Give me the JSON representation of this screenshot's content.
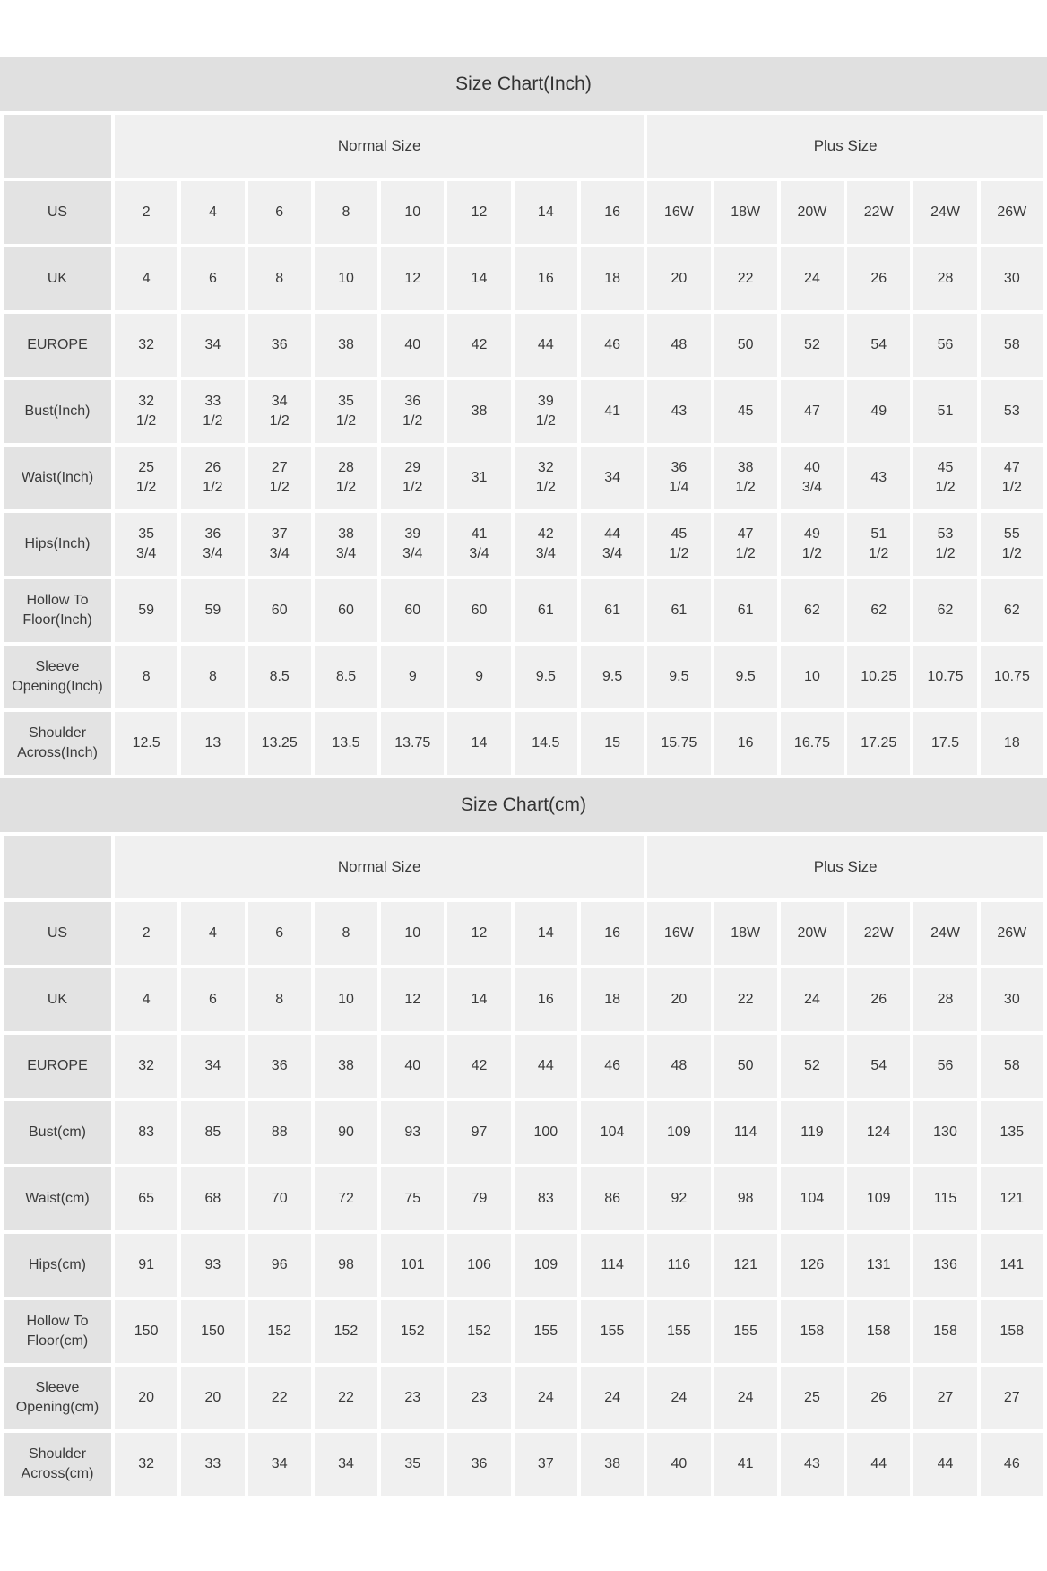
{
  "colors": {
    "title-bg": "#e0e0e0",
    "label-bg": "#e3e3e3",
    "cell-bg": "#f0f0f0",
    "text": "#3a3a3a"
  },
  "chart_data": [
    {
      "type": "table",
      "title": "Size Chart(Inch)",
      "group_headers": [
        {
          "label": "Normal Size",
          "span": 8
        },
        {
          "label": "Plus Size",
          "span": 6
        }
      ],
      "rows": [
        {
          "label": "US",
          "values": [
            "2",
            "4",
            "6",
            "8",
            "10",
            "12",
            "14",
            "16",
            "16W",
            "18W",
            "20W",
            "22W",
            "24W",
            "26W"
          ]
        },
        {
          "label": "UK",
          "values": [
            "4",
            "6",
            "8",
            "10",
            "12",
            "14",
            "16",
            "18",
            "20",
            "22",
            "24",
            "26",
            "28",
            "30"
          ]
        },
        {
          "label": "EUROPE",
          "values": [
            "32",
            "34",
            "36",
            "38",
            "40",
            "42",
            "44",
            "46",
            "48",
            "50",
            "52",
            "54",
            "56",
            "58"
          ]
        },
        {
          "label": "Bust(Inch)",
          "values": [
            "32\n1/2",
            "33\n1/2",
            "34\n1/2",
            "35\n1/2",
            "36\n1/2",
            "38",
            "39\n1/2",
            "41",
            "43",
            "45",
            "47",
            "49",
            "51",
            "53"
          ]
        },
        {
          "label": "Waist(Inch)",
          "values": [
            "25\n1/2",
            "26\n1/2",
            "27\n1/2",
            "28\n1/2",
            "29\n1/2",
            "31",
            "32\n1/2",
            "34",
            "36\n1/4",
            "38\n1/2",
            "40\n3/4",
            "43",
            "45\n1/2",
            "47\n1/2"
          ]
        },
        {
          "label": "Hips(Inch)",
          "values": [
            "35\n3/4",
            "36\n3/4",
            "37\n3/4",
            "38\n3/4",
            "39\n3/4",
            "41\n3/4",
            "42\n3/4",
            "44\n3/4",
            "45\n1/2",
            "47\n1/2",
            "49\n1/2",
            "51\n1/2",
            "53\n1/2",
            "55\n1/2"
          ]
        },
        {
          "label": "Hollow To Floor(Inch)",
          "values": [
            "59",
            "59",
            "60",
            "60",
            "60",
            "60",
            "61",
            "61",
            "61",
            "61",
            "62",
            "62",
            "62",
            "62"
          ]
        },
        {
          "label": "Sleeve Opening(Inch)",
          "values": [
            "8",
            "8",
            "8.5",
            "8.5",
            "9",
            "9",
            "9.5",
            "9.5",
            "9.5",
            "9.5",
            "10",
            "10.25",
            "10.75",
            "10.75"
          ]
        },
        {
          "label": "Shoulder Across(Inch)",
          "values": [
            "12.5",
            "13",
            "13.25",
            "13.5",
            "13.75",
            "14",
            "14.5",
            "15",
            "15.75",
            "16",
            "16.75",
            "17.25",
            "17.5",
            "18"
          ]
        }
      ]
    },
    {
      "type": "table",
      "title": "Size Chart(cm)",
      "group_headers": [
        {
          "label": "Normal Size",
          "span": 8
        },
        {
          "label": "Plus Size",
          "span": 6
        }
      ],
      "rows": [
        {
          "label": "US",
          "values": [
            "2",
            "4",
            "6",
            "8",
            "10",
            "12",
            "14",
            "16",
            "16W",
            "18W",
            "20W",
            "22W",
            "24W",
            "26W"
          ]
        },
        {
          "label": "UK",
          "values": [
            "4",
            "6",
            "8",
            "10",
            "12",
            "14",
            "16",
            "18",
            "20",
            "22",
            "24",
            "26",
            "28",
            "30"
          ]
        },
        {
          "label": "EUROPE",
          "values": [
            "32",
            "34",
            "36",
            "38",
            "40",
            "42",
            "44",
            "46",
            "48",
            "50",
            "52",
            "54",
            "56",
            "58"
          ]
        },
        {
          "label": "Bust(cm)",
          "values": [
            "83",
            "85",
            "88",
            "90",
            "93",
            "97",
            "100",
            "104",
            "109",
            "114",
            "119",
            "124",
            "130",
            "135"
          ]
        },
        {
          "label": "Waist(cm)",
          "values": [
            "65",
            "68",
            "70",
            "72",
            "75",
            "79",
            "83",
            "86",
            "92",
            "98",
            "104",
            "109",
            "115",
            "121"
          ]
        },
        {
          "label": "Hips(cm)",
          "values": [
            "91",
            "93",
            "96",
            "98",
            "101",
            "106",
            "109",
            "114",
            "116",
            "121",
            "126",
            "131",
            "136",
            "141"
          ]
        },
        {
          "label": "Hollow To Floor(cm)",
          "values": [
            "150",
            "150",
            "152",
            "152",
            "152",
            "152",
            "155",
            "155",
            "155",
            "155",
            "158",
            "158",
            "158",
            "158"
          ]
        },
        {
          "label": "Sleeve Opening(cm)",
          "values": [
            "20",
            "20",
            "22",
            "22",
            "23",
            "23",
            "24",
            "24",
            "24",
            "24",
            "25",
            "26",
            "27",
            "27"
          ]
        },
        {
          "label": "Shoulder Across(cm)",
          "values": [
            "32",
            "33",
            "34",
            "34",
            "35",
            "36",
            "37",
            "38",
            "40",
            "41",
            "43",
            "44",
            "44",
            "46"
          ]
        }
      ]
    }
  ]
}
